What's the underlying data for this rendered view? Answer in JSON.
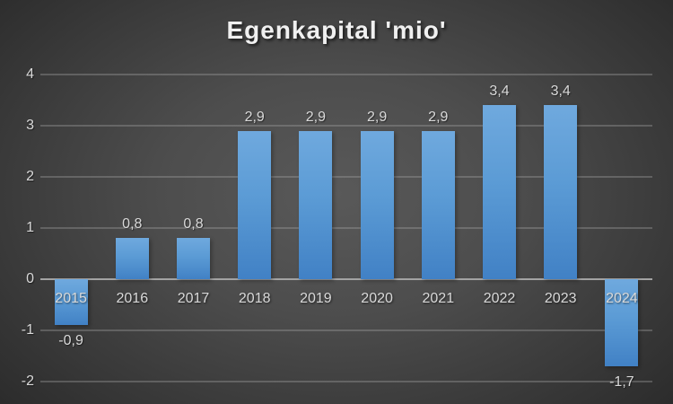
{
  "chart_data": {
    "type": "bar",
    "title": "Egenkapital 'mio'",
    "categories": [
      "2015",
      "2016",
      "2017",
      "2018",
      "2019",
      "2020",
      "2021",
      "2022",
      "2023",
      "2024"
    ],
    "values": [
      -0.9,
      0.8,
      0.8,
      2.9,
      2.9,
      2.9,
      2.9,
      3.4,
      3.4,
      -1.7
    ],
    "value_labels": [
      "-0,9",
      "0,8",
      "0,8",
      "2,9",
      "2,9",
      "2,9",
      "2,9",
      "3,4",
      "3,4",
      "-1,7"
    ],
    "xlabel": "",
    "ylabel": "",
    "ylim": [
      -2,
      4
    ],
    "yticks": [
      4,
      3,
      2,
      1,
      0,
      -1,
      -2
    ],
    "grid": true,
    "legend": "none",
    "decimal_separator": ",",
    "colors": {
      "bar_top": "#6fa9de",
      "bar_bottom": "#4181c5",
      "text": "#d9d9d9",
      "title_text": "#f0f0f0",
      "axis_line": "#a3a3a3",
      "gridline": "rgba(165,165,165,0.35)",
      "background_center": "#595959",
      "background_corner": "#262626"
    }
  }
}
